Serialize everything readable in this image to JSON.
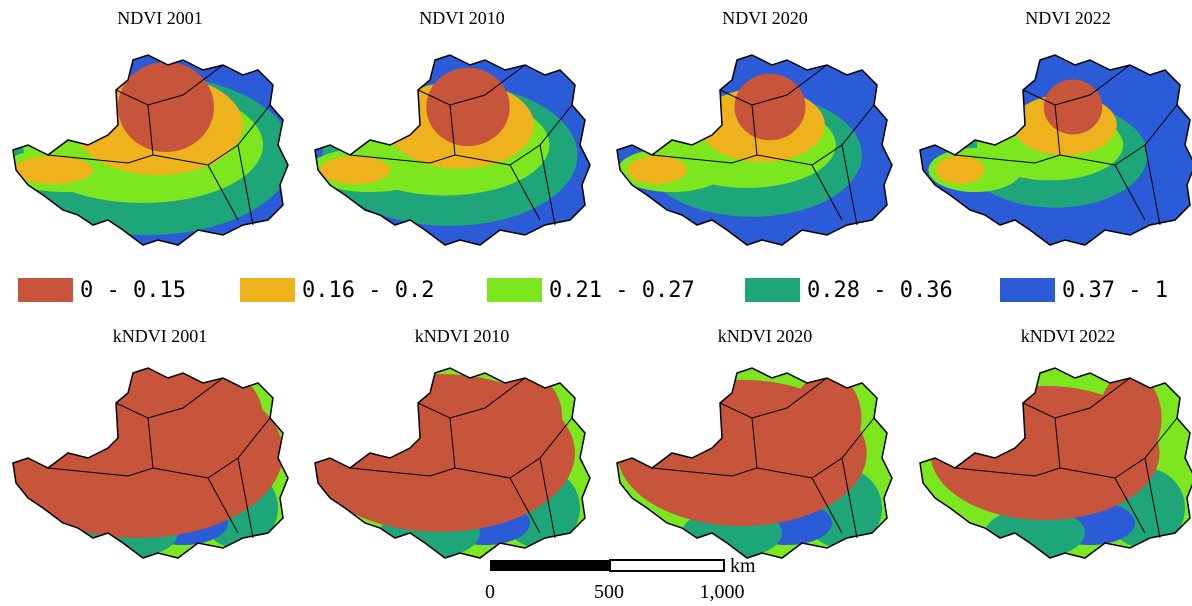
{
  "maps": [
    {
      "title": "NDVI 2001"
    },
    {
      "title": "NDVI 2010"
    },
    {
      "title": "NDVI 2020"
    },
    {
      "title": "NDVI 2022"
    },
    {
      "title": "kNDVI 2001"
    },
    {
      "title": "kNDVI 2010"
    },
    {
      "title": "kNDVI 2020"
    },
    {
      "title": "kNDVI 2022"
    }
  ],
  "legend": [
    {
      "label": "0 - 0.15",
      "color": "#c6553c"
    },
    {
      "label": "0.16 - 0.2",
      "color": "#eeb21c"
    },
    {
      "label": "0.21 - 0.27",
      "color": "#7ce61f"
    },
    {
      "label": "0.28 - 0.36",
      "color": "#1ea67a"
    },
    {
      "label": "0.37 - 1",
      "color": "#2b5bd6"
    }
  ],
  "scale_bar": {
    "labels": [
      "0",
      "500",
      "1,000"
    ],
    "unit": "km"
  }
}
